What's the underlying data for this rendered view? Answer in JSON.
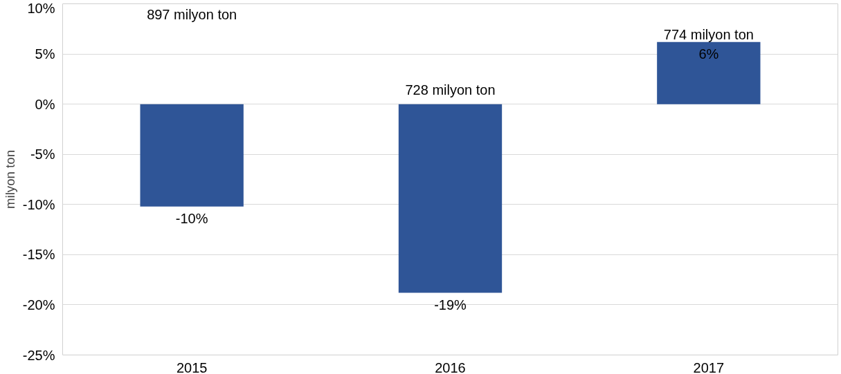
{
  "chart_data": {
    "type": "bar",
    "ylabel": "milyon ton",
    "categories": [
      "2015",
      "2016",
      "2017"
    ],
    "values": [
      -10.2,
      -18.8,
      6.2
    ],
    "color": "#2f5597",
    "value_labels": [
      "-10%",
      "-19%",
      "6%"
    ],
    "annotations": [
      "897 milyon ton",
      "728 milyon ton",
      "774 milyon ton"
    ],
    "ylim": [
      -25,
      10
    ],
    "yticks": [
      {
        "value": 10,
        "label": "10%"
      },
      {
        "value": 5,
        "label": "5%"
      },
      {
        "value": 0,
        "label": "0%"
      },
      {
        "value": -5,
        "label": "-5%"
      },
      {
        "value": -10,
        "label": "-10%"
      },
      {
        "value": -15,
        "label": "-15%"
      },
      {
        "value": -20,
        "label": "-20%"
      },
      {
        "value": -25,
        "label": "-25%"
      }
    ],
    "grid": "y"
  }
}
